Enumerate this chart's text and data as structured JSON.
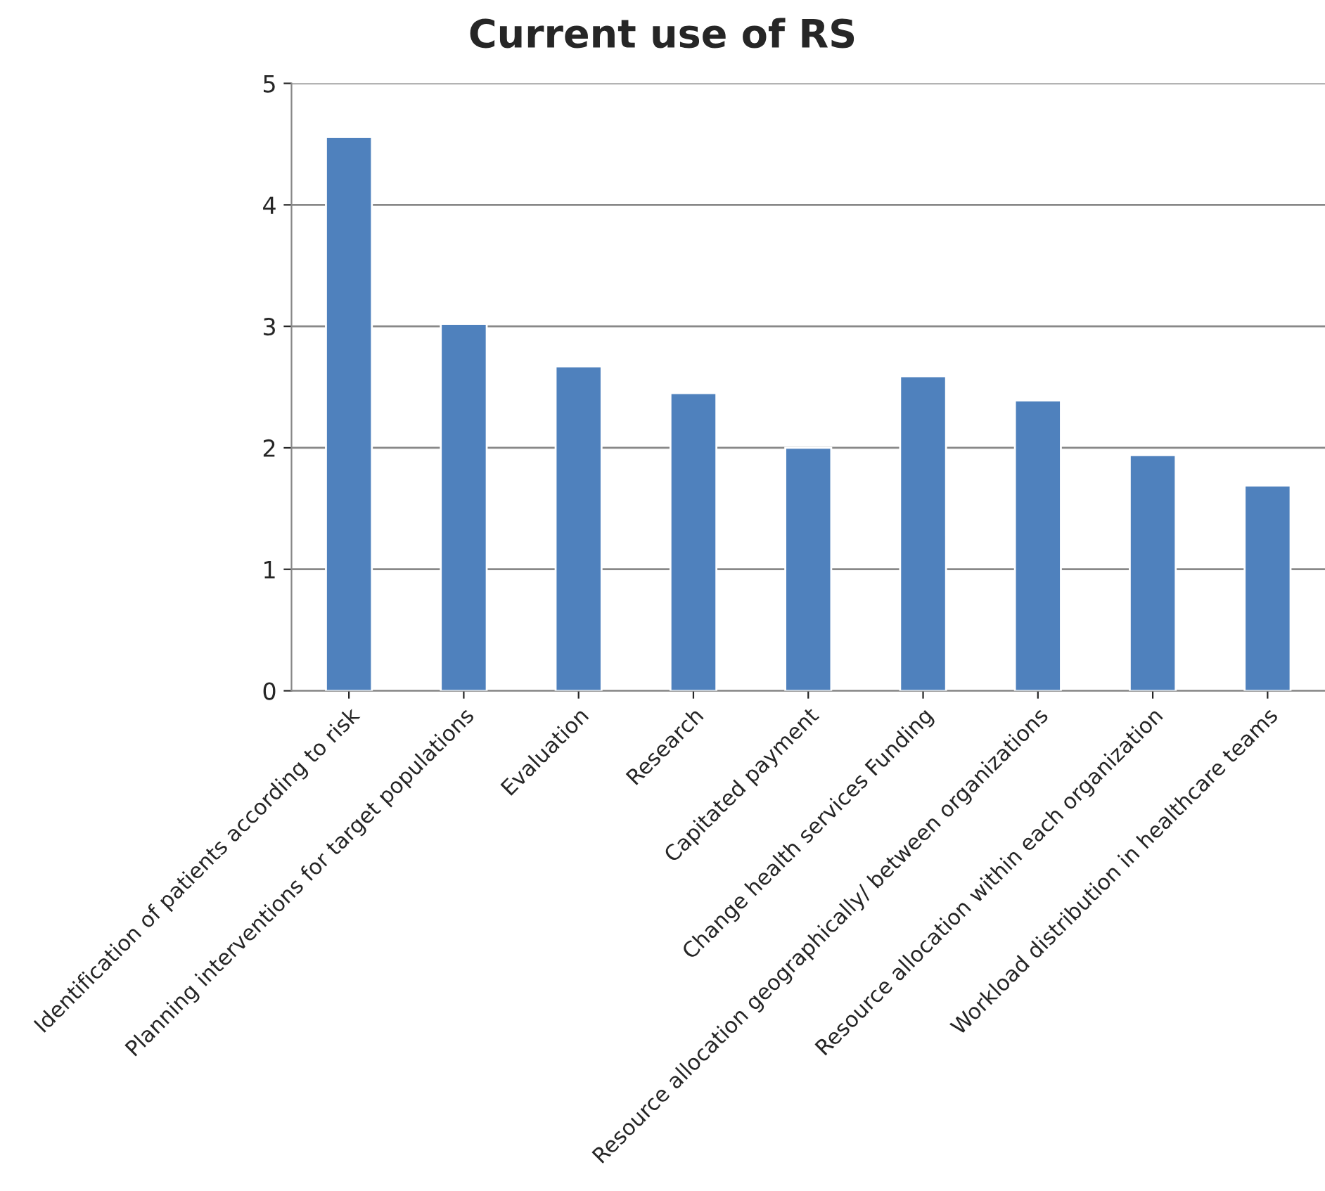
{
  "chart_data": {
    "type": "bar",
    "title": "Current use of RS",
    "categories": [
      "Identification of patients according to risk",
      "Planning interventions for target populations",
      "Evaluation",
      "Research",
      "Capitated payment",
      "Change health services Funding",
      "Resource allocation geographically/ between organizations",
      "Resource allocation within each organization",
      "Workload distribution in healthcare teams"
    ],
    "values": [
      4.56,
      3.02,
      2.67,
      2.45,
      2.0,
      2.59,
      2.39,
      1.94,
      1.69
    ],
    "color": "#4f81bd",
    "ylim": [
      0,
      5
    ],
    "yticks": [
      0,
      1,
      2,
      3,
      4,
      5
    ],
    "grid": "y",
    "legend": false
  }
}
